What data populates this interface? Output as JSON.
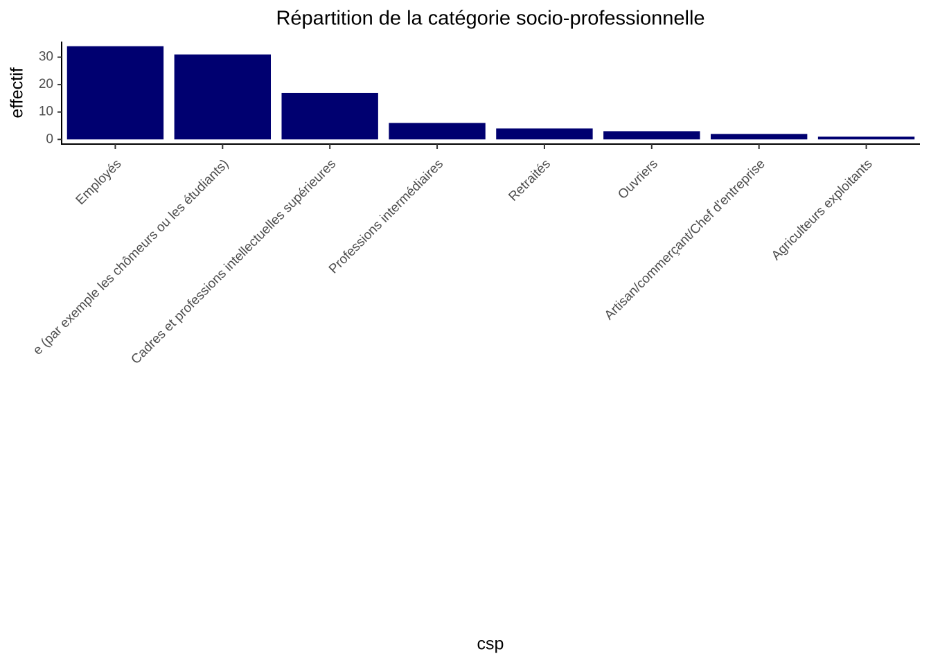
{
  "chart_data": {
    "type": "bar",
    "title": "Répartition de la catégorie socio-professionnelle",
    "x_label": "csp",
    "y_label": "effectif",
    "categories": [
      "Employés",
      "e (par exemple les chômeurs ou les étudiants)",
      "Cadres et professions intellectuelles supérieures",
      "Professions intermédiaires",
      "Retraités",
      "Ouvriers",
      "Artisan/commerçant/Chef d'entreprise",
      "Agriculteurs exploitants"
    ],
    "values": [
      34,
      31,
      17,
      6,
      4,
      3,
      2,
      1
    ],
    "color": "#000070",
    "ylim": [
      -1.7,
      35.7
    ],
    "yticks": [
      0,
      10,
      20,
      30
    ],
    "grid": false
  }
}
